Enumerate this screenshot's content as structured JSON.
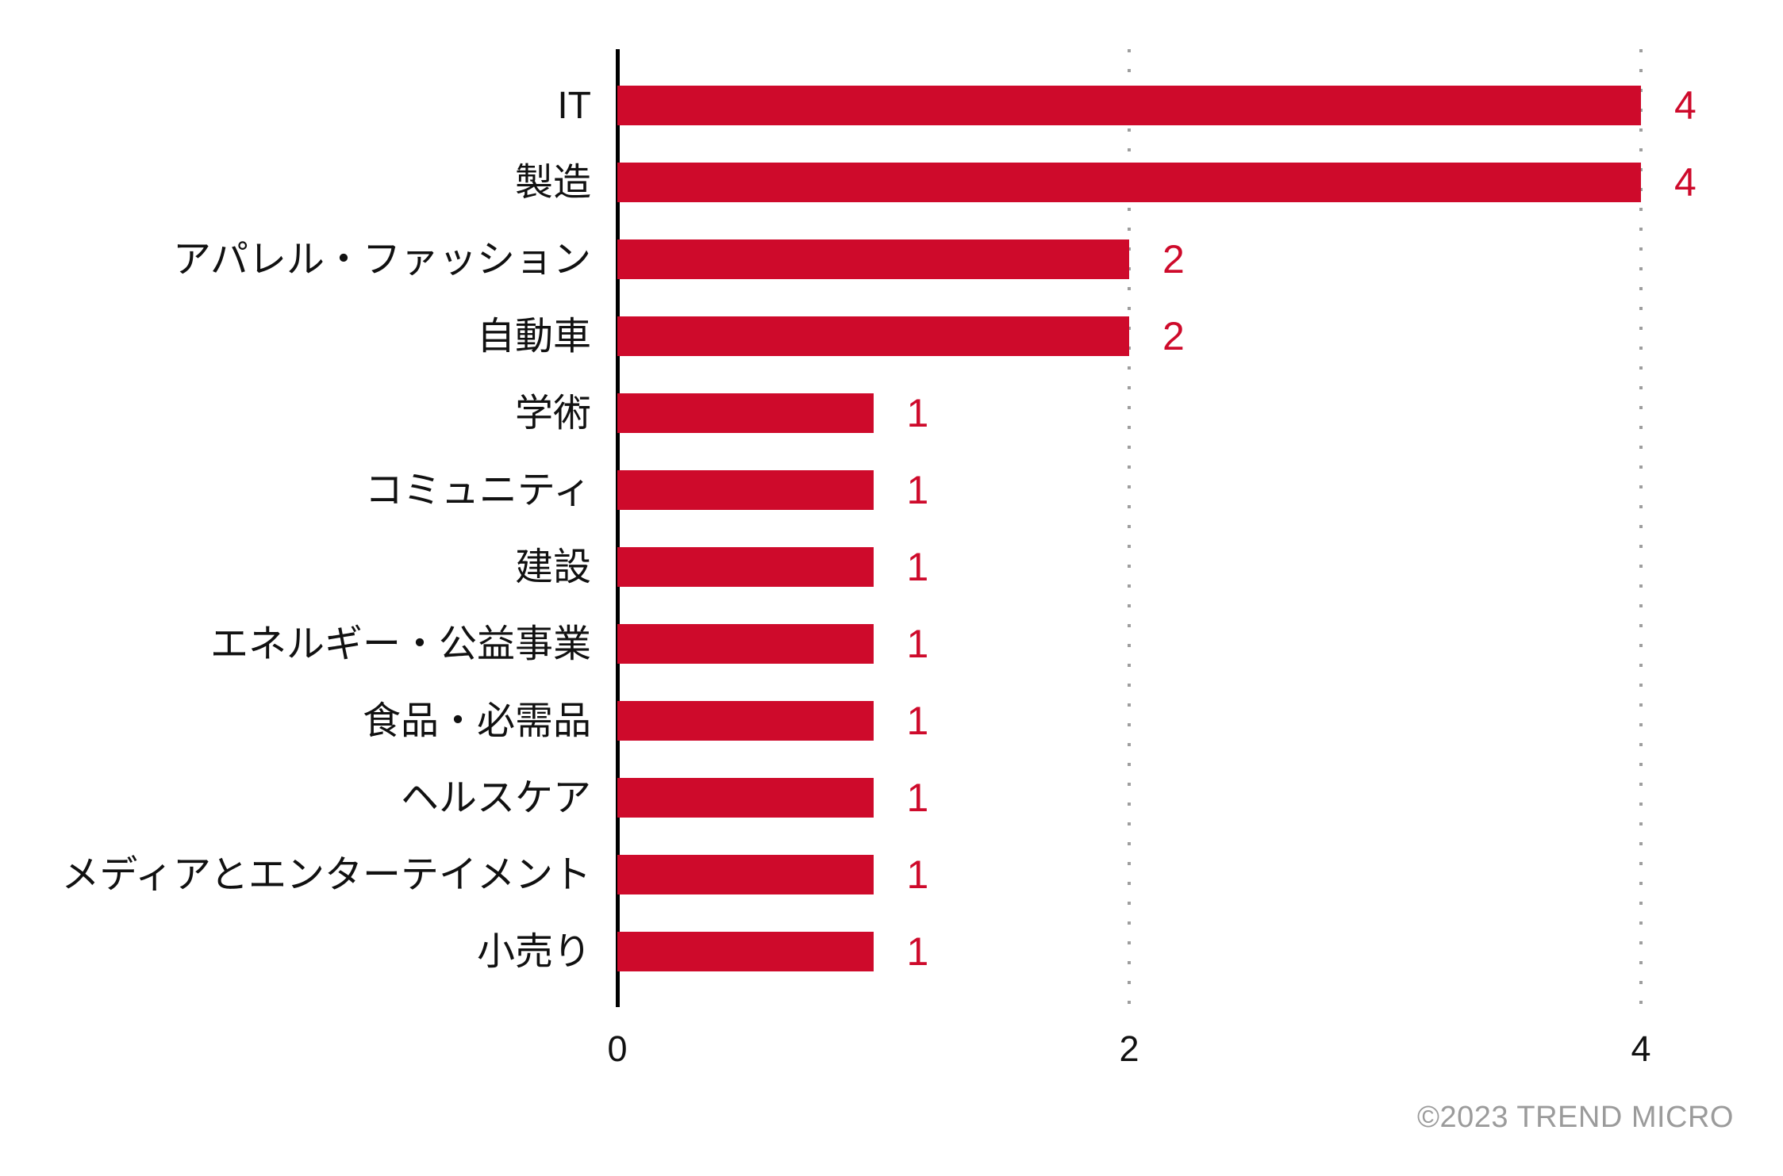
{
  "chart_data": {
    "type": "bar",
    "orientation": "horizontal",
    "title": "",
    "categories": [
      "IT",
      "製造",
      "アパレル・ファッション",
      "自動車",
      "学術",
      "コミュニティ",
      "建設",
      "エネルギー・公益事業",
      "食品・必需品",
      "ヘルスケア",
      "メディアとエンターテイメント",
      "小売り"
    ],
    "values": [
      4,
      4,
      2,
      2,
      1,
      1,
      1,
      1,
      1,
      1,
      1,
      1
    ],
    "xlim": [
      0,
      4
    ],
    "x_ticks": [
      "0",
      "2",
      "4"
    ],
    "x_tick_values": [
      0,
      2,
      4
    ],
    "grid": "vertical-dotted",
    "legend": "none",
    "value_labels_shown": true,
    "colors": {
      "bar": "#CE0A2B",
      "value_label": "#CE0A2B",
      "axis": "#000000",
      "gridline": "#9E9E9E",
      "category_label": "#111111",
      "tick_label": "#111111"
    }
  },
  "footer": {
    "text": "©2023 TREND MICRO",
    "color": "#9B9B9B"
  }
}
